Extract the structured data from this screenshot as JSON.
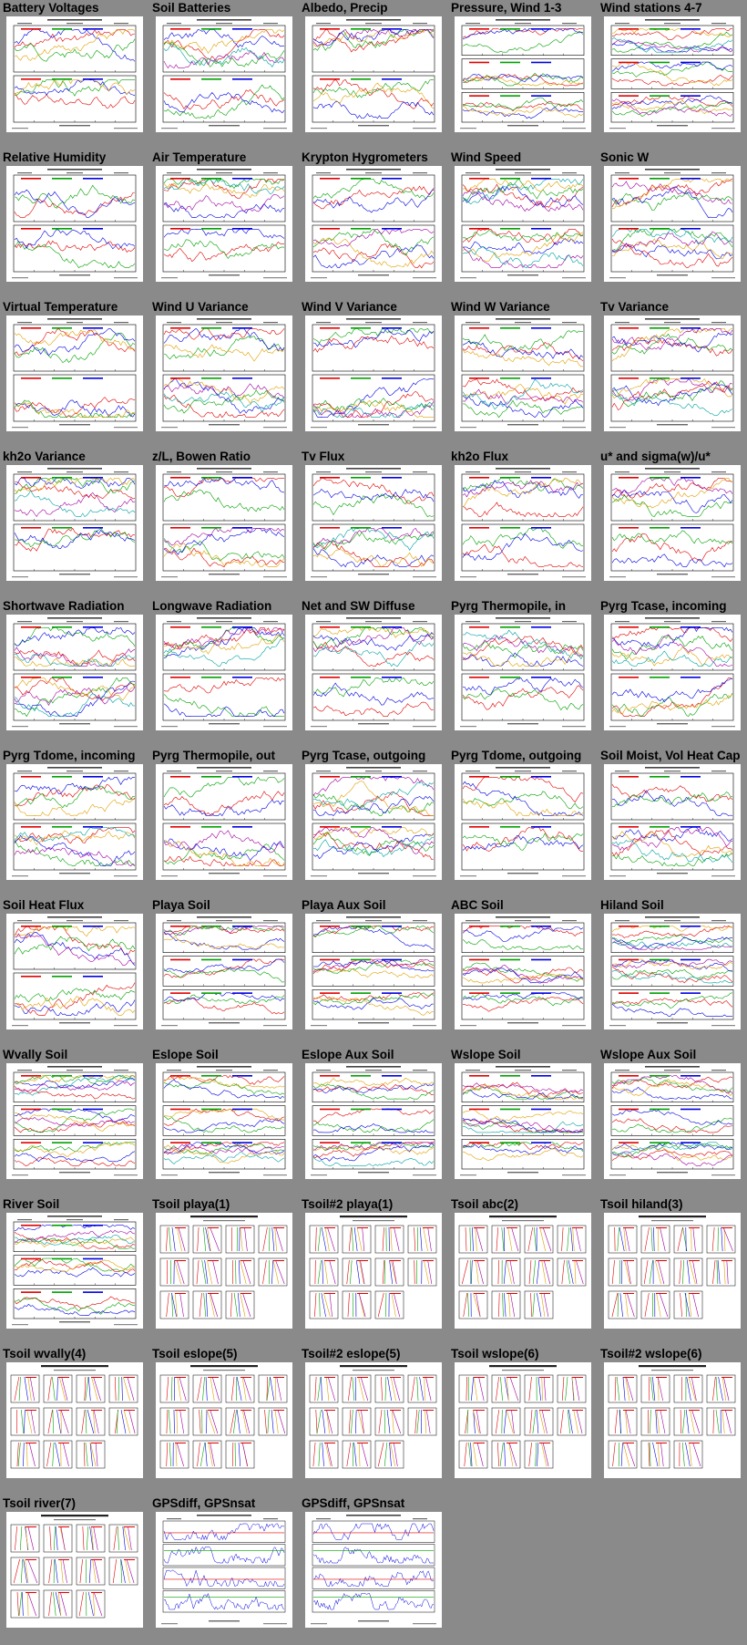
{
  "page": {
    "background": "#8a8a8a"
  },
  "plots": [
    {
      "title": "Battery Voltages",
      "kind": "ts2"
    },
    {
      "title": "Soil Batteries",
      "kind": "ts2"
    },
    {
      "title": "Albedo, Precip",
      "kind": "ts2"
    },
    {
      "title": "Pressure, Wind 1-3",
      "kind": "ts3"
    },
    {
      "title": "Wind stations 4-7",
      "kind": "ts3"
    },
    {
      "title": "Relative Humidity",
      "kind": "ts2"
    },
    {
      "title": "Air Temperature",
      "kind": "ts2"
    },
    {
      "title": "Krypton Hygrometers",
      "kind": "ts2"
    },
    {
      "title": "Wind Speed",
      "kind": "ts2"
    },
    {
      "title": "Sonic W",
      "kind": "ts2"
    },
    {
      "title": "Virtual Temperature",
      "kind": "ts2"
    },
    {
      "title": "Wind U Variance",
      "kind": "ts2"
    },
    {
      "title": "Wind V Variance",
      "kind": "ts2"
    },
    {
      "title": "Wind W Variance",
      "kind": "ts2"
    },
    {
      "title": "Tv Variance",
      "kind": "ts2"
    },
    {
      "title": "kh2o Variance",
      "kind": "ts2"
    },
    {
      "title": "z/L, Bowen Ratio",
      "kind": "ts2"
    },
    {
      "title": "Tv Flux",
      "kind": "ts2"
    },
    {
      "title": "kh2o Flux",
      "kind": "ts2"
    },
    {
      "title": "u* and sigma(w)/u*",
      "kind": "ts2"
    },
    {
      "title": "Shortwave Radiation",
      "kind": "ts2"
    },
    {
      "title": "Longwave Radiation",
      "kind": "ts2"
    },
    {
      "title": "Net and SW Diffuse",
      "kind": "ts2"
    },
    {
      "title": "Pyrg Thermopile, in",
      "kind": "ts2"
    },
    {
      "title": "Pyrg Tcase, incoming",
      "kind": "ts2"
    },
    {
      "title": "Pyrg Tdome, incoming",
      "kind": "ts2"
    },
    {
      "title": "Pyrg Thermopile, out",
      "kind": "ts2"
    },
    {
      "title": "Pyrg Tcase, outgoing",
      "kind": "ts2"
    },
    {
      "title": "Pyrg Tdome, outgoing",
      "kind": "ts2"
    },
    {
      "title": "Soil Moist, Vol Heat Cap",
      "kind": "ts2"
    },
    {
      "title": "Soil Heat Flux",
      "kind": "ts2"
    },
    {
      "title": "Playa Soil",
      "kind": "ts3"
    },
    {
      "title": "Playa Aux Soil",
      "kind": "ts3"
    },
    {
      "title": "ABC Soil",
      "kind": "ts3"
    },
    {
      "title": "Hiland Soil",
      "kind": "ts3"
    },
    {
      "title": "Wvally Soil",
      "kind": "ts3"
    },
    {
      "title": "Eslope Soil",
      "kind": "ts3"
    },
    {
      "title": "Eslope Aux Soil",
      "kind": "ts3"
    },
    {
      "title": "Wslope Soil",
      "kind": "ts3"
    },
    {
      "title": "Wslope Aux Soil",
      "kind": "ts3"
    },
    {
      "title": "River Soil",
      "kind": "ts3"
    },
    {
      "title": "Tsoil playa(1)",
      "kind": "prof"
    },
    {
      "title": "Tsoil#2 playa(1)",
      "kind": "prof"
    },
    {
      "title": "Tsoil abc(2)",
      "kind": "prof"
    },
    {
      "title": "Tsoil hiland(3)",
      "kind": "prof"
    },
    {
      "title": "Tsoil wvally(4)",
      "kind": "prof"
    },
    {
      "title": "Tsoil eslope(5)",
      "kind": "prof"
    },
    {
      "title": "Tsoil#2 eslope(5)",
      "kind": "prof"
    },
    {
      "title": "Tsoil wslope(6)",
      "kind": "prof"
    },
    {
      "title": "Tsoil#2 wslope(6)",
      "kind": "prof"
    },
    {
      "title": "Tsoil river(7)",
      "kind": "prof"
    },
    {
      "title": "GPSdiff, GPSnsat",
      "kind": "gps"
    },
    {
      "title": "GPSdiff, GPSnsat",
      "kind": "gps"
    }
  ],
  "colors": [
    "#e00000",
    "#00a000",
    "#0000e0",
    "#e0a000",
    "#a000a0",
    "#00a0a0",
    "#000000"
  ]
}
